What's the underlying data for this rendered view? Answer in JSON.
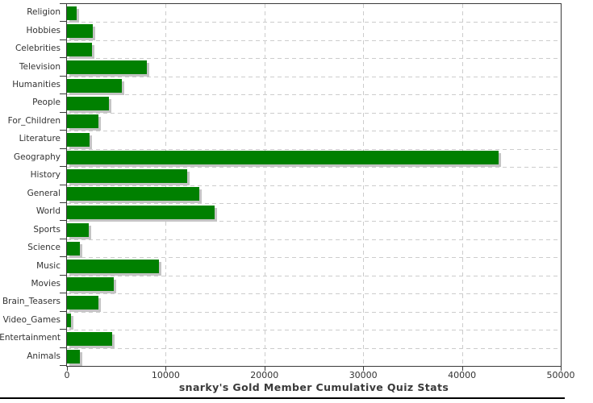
{
  "chart_data": {
    "type": "bar",
    "orientation": "horizontal",
    "title": "snarky's Gold Member Cumulative Quiz Stats",
    "categories": [
      "Religion",
      "Hobbies",
      "Celebrities",
      "Television",
      "Humanities",
      "People",
      "For_Children",
      "Literature",
      "Geography",
      "History",
      "General",
      "World",
      "Sports",
      "Science",
      "Music",
      "Movies",
      "Brain_Teasers",
      "Video_Games",
      "Entertainment",
      "Animals"
    ],
    "values": [
      1000,
      2600,
      2500,
      8050,
      5550,
      4250,
      3150,
      2280,
      43700,
      12200,
      13400,
      14950,
      2200,
      1330,
      9300,
      4700,
      3200,
      400,
      4600,
      1330
    ],
    "xlabel": "",
    "ylabel": "",
    "xlim": [
      0,
      50000
    ],
    "x_ticks": [
      0,
      10000,
      20000,
      30000,
      40000,
      50000
    ],
    "x_tick_labels": [
      "0",
      "10000",
      "20000",
      "30000",
      "40000",
      "50000"
    ],
    "grid": "dashed; vertical lines at major x ticks, horizontal lines at category row boundaries",
    "legend": "none",
    "bar_color": "#008000",
    "bar_shadow_color": "#c4c4c4",
    "gridline_color": "#cccccc",
    "axis_color": "#3a3a3a",
    "text_color": "#333333",
    "background_color": "#ffffff"
  }
}
